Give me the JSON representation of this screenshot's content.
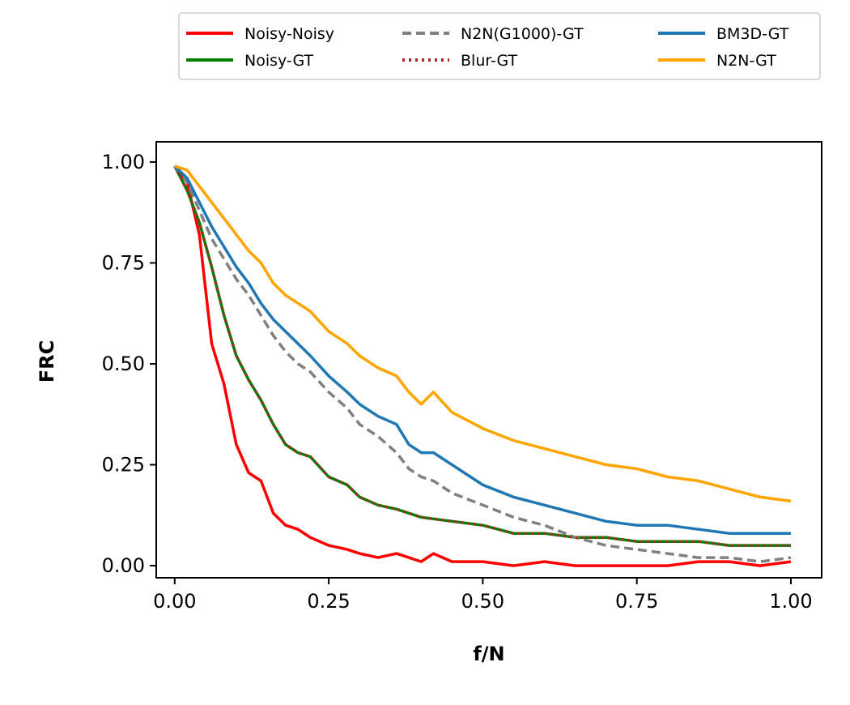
{
  "chart_data": {
    "type": "line",
    "title": "",
    "xlabel": "f/N",
    "ylabel": "FRC",
    "xlim": [
      -0.03,
      1.05
    ],
    "ylim": [
      -0.03,
      1.05
    ],
    "x_ticks": [
      "0.00",
      "0.25",
      "0.50",
      "0.75",
      "1.00"
    ],
    "y_ticks": [
      "0.00",
      "0.25",
      "0.50",
      "0.75",
      "1.00"
    ],
    "grid": false,
    "legend_position": "top-center, above plot, 3 columns",
    "series": [
      {
        "name": "Noisy-Noisy",
        "color": "#ff0000",
        "style": "solid",
        "x": [
          0,
          0.02,
          0.04,
          0.06,
          0.08,
          0.1,
          0.12,
          0.14,
          0.16,
          0.18,
          0.2,
          0.22,
          0.25,
          0.28,
          0.3,
          0.33,
          0.36,
          0.38,
          0.4,
          0.42,
          0.45,
          0.5,
          0.55,
          0.6,
          0.65,
          0.7,
          0.75,
          0.8,
          0.85,
          0.9,
          0.95,
          1.0
        ],
        "y": [
          0.99,
          0.95,
          0.82,
          0.55,
          0.45,
          0.3,
          0.23,
          0.21,
          0.13,
          0.1,
          0.09,
          0.07,
          0.05,
          0.04,
          0.03,
          0.02,
          0.03,
          0.02,
          0.01,
          0.03,
          0.01,
          0.01,
          0.0,
          0.01,
          0.0,
          0.0,
          0.0,
          0.0,
          0.01,
          0.01,
          0.0,
          0.01
        ]
      },
      {
        "name": "Noisy-GT",
        "color": "#008000",
        "style": "solid",
        "x": [
          0,
          0.02,
          0.04,
          0.06,
          0.08,
          0.1,
          0.12,
          0.14,
          0.16,
          0.18,
          0.2,
          0.22,
          0.25,
          0.28,
          0.3,
          0.33,
          0.36,
          0.4,
          0.45,
          0.5,
          0.55,
          0.6,
          0.65,
          0.7,
          0.75,
          0.8,
          0.85,
          0.9,
          0.95,
          1.0
        ],
        "y": [
          0.99,
          0.93,
          0.85,
          0.74,
          0.62,
          0.52,
          0.46,
          0.41,
          0.35,
          0.3,
          0.28,
          0.27,
          0.22,
          0.2,
          0.17,
          0.15,
          0.14,
          0.12,
          0.11,
          0.1,
          0.08,
          0.08,
          0.07,
          0.07,
          0.06,
          0.06,
          0.06,
          0.05,
          0.05,
          0.05
        ]
      },
      {
        "name": "N2N(G1000)-GT",
        "color": "#808080",
        "style": "dashed",
        "x": [
          0,
          0.02,
          0.04,
          0.06,
          0.08,
          0.1,
          0.12,
          0.14,
          0.16,
          0.18,
          0.2,
          0.22,
          0.25,
          0.28,
          0.3,
          0.33,
          0.36,
          0.38,
          0.4,
          0.42,
          0.45,
          0.5,
          0.55,
          0.6,
          0.65,
          0.7,
          0.75,
          0.8,
          0.85,
          0.9,
          0.95,
          1.0
        ],
        "y": [
          0.99,
          0.95,
          0.88,
          0.81,
          0.76,
          0.71,
          0.67,
          0.62,
          0.57,
          0.53,
          0.5,
          0.48,
          0.43,
          0.39,
          0.35,
          0.32,
          0.28,
          0.24,
          0.22,
          0.21,
          0.18,
          0.15,
          0.12,
          0.1,
          0.07,
          0.05,
          0.04,
          0.03,
          0.02,
          0.02,
          0.01,
          0.02
        ]
      },
      {
        "name": "Blur-GT",
        "color": "#a52a2a",
        "style": "dotted",
        "x": [
          0,
          0.02,
          0.04,
          0.06,
          0.08,
          0.1,
          0.12,
          0.14,
          0.16,
          0.18,
          0.2,
          0.22,
          0.25,
          0.28,
          0.3,
          0.33,
          0.36,
          0.4,
          0.45,
          0.5,
          0.55,
          0.6,
          0.65,
          0.7,
          0.75,
          0.8,
          0.85,
          0.9,
          0.95,
          1.0
        ],
        "y": [
          0.99,
          0.93,
          0.85,
          0.74,
          0.62,
          0.52,
          0.46,
          0.41,
          0.35,
          0.3,
          0.28,
          0.27,
          0.22,
          0.2,
          0.17,
          0.15,
          0.14,
          0.12,
          0.11,
          0.1,
          0.08,
          0.08,
          0.07,
          0.07,
          0.06,
          0.06,
          0.06,
          0.05,
          0.05,
          0.05
        ]
      },
      {
        "name": "BM3D-GT",
        "color": "#1f77b4",
        "style": "solid",
        "x": [
          0,
          0.02,
          0.04,
          0.06,
          0.08,
          0.1,
          0.12,
          0.14,
          0.16,
          0.18,
          0.2,
          0.22,
          0.25,
          0.28,
          0.3,
          0.33,
          0.36,
          0.38,
          0.4,
          0.42,
          0.45,
          0.5,
          0.55,
          0.6,
          0.65,
          0.7,
          0.75,
          0.8,
          0.85,
          0.9,
          0.95,
          1.0
        ],
        "y": [
          0.99,
          0.96,
          0.9,
          0.84,
          0.79,
          0.74,
          0.7,
          0.65,
          0.61,
          0.58,
          0.55,
          0.52,
          0.47,
          0.43,
          0.4,
          0.37,
          0.35,
          0.3,
          0.28,
          0.28,
          0.25,
          0.2,
          0.17,
          0.15,
          0.13,
          0.11,
          0.1,
          0.1,
          0.09,
          0.08,
          0.08,
          0.08
        ]
      },
      {
        "name": "N2N-GT",
        "color": "#ffa500",
        "style": "solid",
        "x": [
          0,
          0.02,
          0.04,
          0.06,
          0.08,
          0.1,
          0.12,
          0.14,
          0.16,
          0.18,
          0.2,
          0.22,
          0.25,
          0.28,
          0.3,
          0.33,
          0.36,
          0.38,
          0.4,
          0.42,
          0.45,
          0.5,
          0.55,
          0.6,
          0.65,
          0.7,
          0.75,
          0.8,
          0.85,
          0.9,
          0.95,
          1.0
        ],
        "y": [
          0.99,
          0.98,
          0.94,
          0.9,
          0.86,
          0.82,
          0.78,
          0.75,
          0.7,
          0.67,
          0.65,
          0.63,
          0.58,
          0.55,
          0.52,
          0.49,
          0.47,
          0.43,
          0.4,
          0.43,
          0.38,
          0.34,
          0.31,
          0.29,
          0.27,
          0.25,
          0.24,
          0.22,
          0.21,
          0.19,
          0.17,
          0.16
        ]
      }
    ]
  }
}
